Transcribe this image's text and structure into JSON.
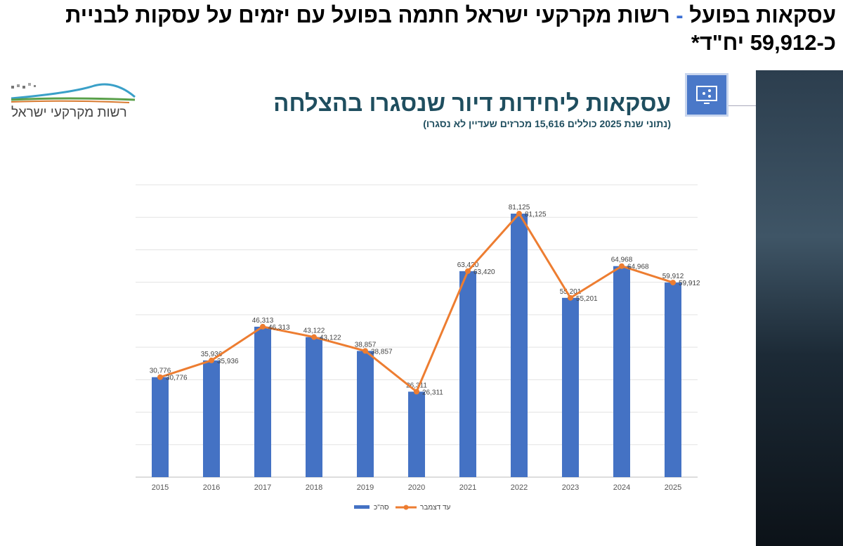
{
  "headline": {
    "line1": "עסקאות בפועל",
    "dash": " - ",
    "line1b": "רשות מקרקעי ישראל חתמה בפועל עם יזמים על עסקות לבניית כ-59,912 יח\"ד*"
  },
  "logo": {
    "text": "רשות מקרקעי ישראל"
  },
  "header": {
    "title": "עסקאות ליחידות דיור שנסגרו בהצלחה",
    "subtitle": "(נתוני שנת 2025 כוללים 15,616 מכרזים שעדיין לא נסגרו)"
  },
  "colors": {
    "bar": "#4472c4",
    "line": "#ed7d31",
    "title": "#1f4e5f"
  },
  "chart_data": {
    "type": "bar",
    "title": "עסקאות ליחידות דיור שנסגרו בהצלחה",
    "categories": [
      "2015",
      "2016",
      "2017",
      "2018",
      "2019",
      "2020",
      "2021",
      "2022",
      "2023",
      "2024",
      "2025"
    ],
    "series": [
      {
        "name": "סה\"כ",
        "type": "bar",
        "values": [
          30776,
          35936,
          46313,
          43122,
          38857,
          26311,
          63420,
          81125,
          55201,
          64968,
          59912
        ]
      },
      {
        "name": "עד דצמבר",
        "type": "line",
        "values": [
          30776,
          35936,
          46313,
          43122,
          38857,
          26311,
          63420,
          81125,
          55201,
          64968,
          59912
        ]
      }
    ],
    "ylim": [
      0,
      90000
    ],
    "grid": true,
    "legend": "bottom",
    "xlabel": "",
    "ylabel": ""
  }
}
